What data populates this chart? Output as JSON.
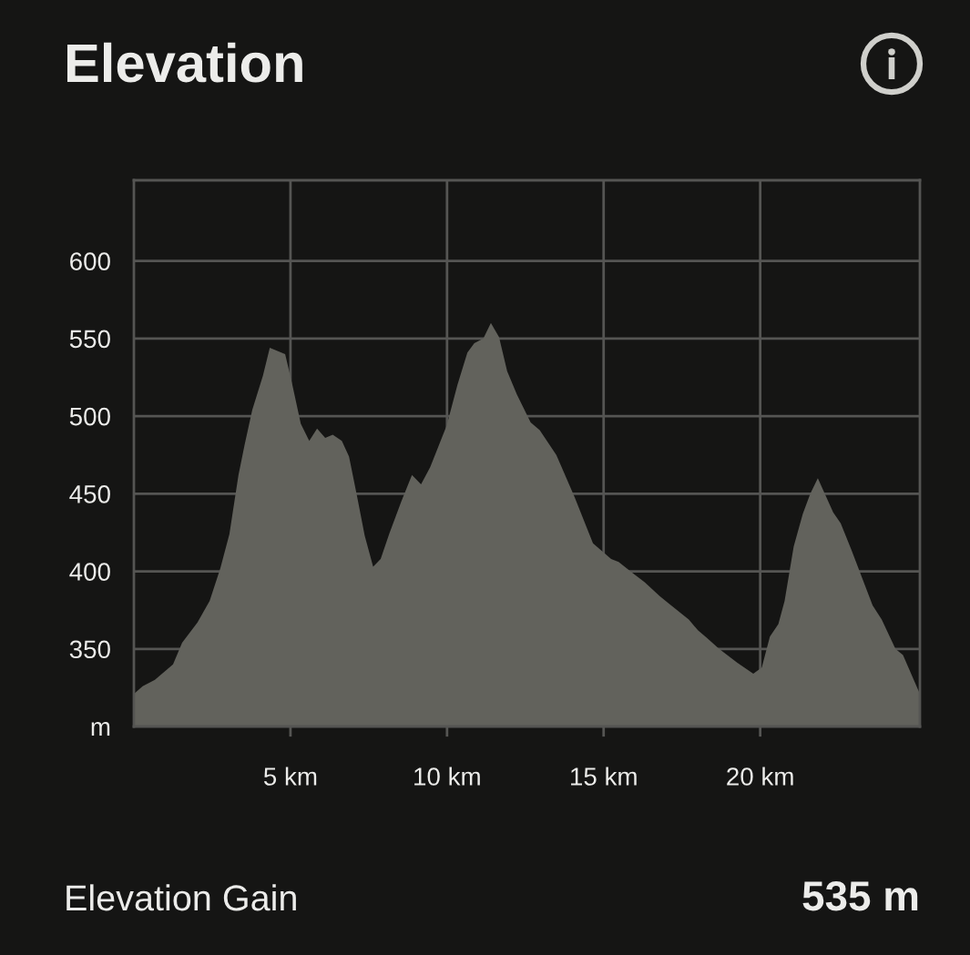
{
  "chart_data": {
    "type": "area",
    "title": "Elevation",
    "annotations": [
      "Elevation Gain",
      "535 m"
    ],
    "x": [
      0,
      0.28,
      0.67,
      1.25,
      1.54,
      2.03,
      2.42,
      2.76,
      3.05,
      3.34,
      3.53,
      3.78,
      4.12,
      4.34,
      4.83,
      5.04,
      5.33,
      5.6,
      5.85,
      6.11,
      6.35,
      6.64,
      6.87,
      7.13,
      7.37,
      7.64,
      7.88,
      8.15,
      8.54,
      8.88,
      9.17,
      9.46,
      9.99,
      10.33,
      10.65,
      10.87,
      11.16,
      11.4,
      11.66,
      11.92,
      12.23,
      12.67,
      12.96,
      13.49,
      14.07,
      14.66,
      15.24,
      15.48,
      15.92,
      16.31,
      16.79,
      17.04,
      17.72,
      18.01,
      18.3,
      18.69,
      19.27,
      19.78,
      20.05,
      20.31,
      20.58,
      20.78,
      21.07,
      21.36,
      21.6,
      21.84,
      22.33,
      22.57,
      22.91,
      23.59,
      23.88,
      24.32,
      24.56,
      25.1
    ],
    "values": [
      321,
      326,
      330,
      340,
      354,
      367,
      381,
      402,
      424,
      462,
      481,
      504,
      526,
      544,
      540,
      522,
      495,
      484,
      492,
      486,
      488,
      484,
      474,
      448,
      423,
      403,
      408,
      424,
      445,
      462,
      456,
      467,
      494,
      520,
      541,
      547,
      550,
      560,
      551,
      529,
      514,
      496,
      491,
      475,
      448,
      418,
      408,
      406,
      399,
      393,
      384,
      380,
      369,
      362,
      357,
      350,
      341,
      334,
      338,
      358,
      366,
      381,
      416,
      437,
      450,
      460,
      438,
      431,
      414,
      378,
      369,
      350,
      346,
      321
    ],
    "color": "#62625c",
    "xlim": [
      0,
      25.1
    ],
    "ylim": [
      300,
      652
    ],
    "xticks": [
      {
        "value": 5,
        "label": "5 km"
      },
      {
        "value": 10,
        "label": "10 km"
      },
      {
        "value": 15,
        "label": "15 km"
      },
      {
        "value": 20,
        "label": "20 km"
      }
    ],
    "yticks": [
      {
        "value": 300,
        "label": "m"
      },
      350,
      400,
      450,
      500,
      550,
      600
    ],
    "grid": true
  }
}
